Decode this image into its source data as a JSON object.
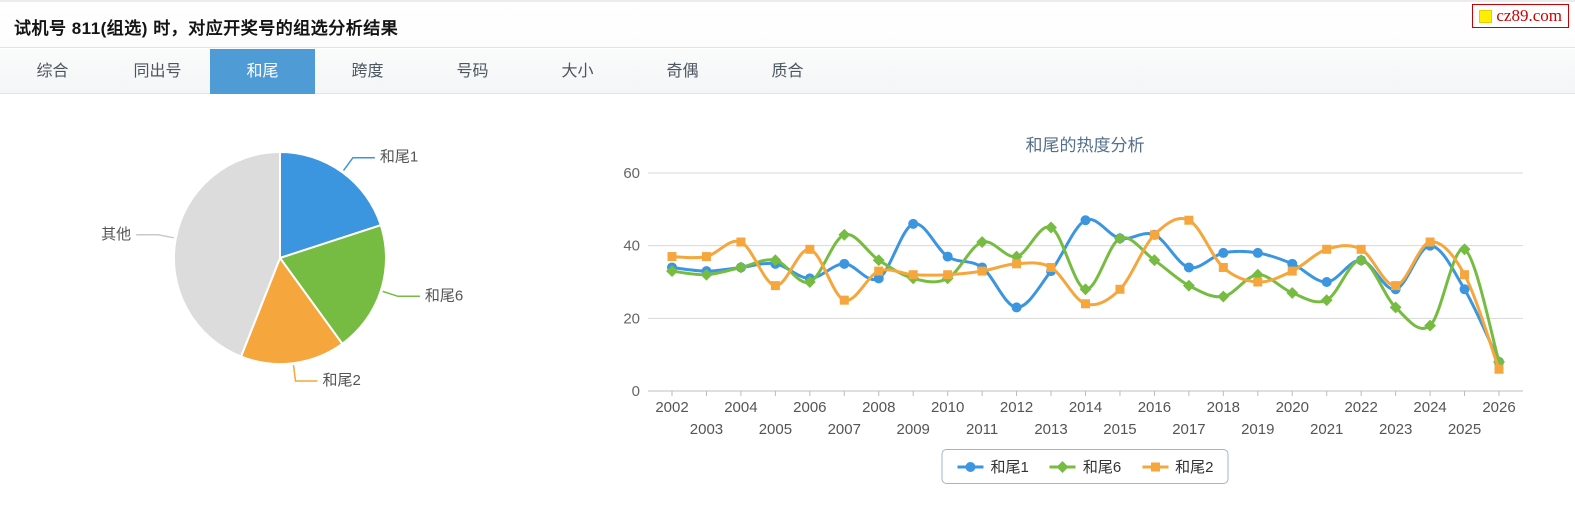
{
  "header": {
    "title": "试机号 811(组选) 时，对应开奖号的组选分析结果",
    "logo_text": "cz89.com"
  },
  "tabs": {
    "active": "和尾",
    "items": [
      {
        "key": "zonghe",
        "label": "综合"
      },
      {
        "key": "tongchuhao",
        "label": "同出号"
      },
      {
        "key": "hewei",
        "label": "和尾"
      },
      {
        "key": "kuadu",
        "label": "跨度"
      },
      {
        "key": "haoma",
        "label": "号码"
      },
      {
        "key": "daxiao",
        "label": "大小"
      },
      {
        "key": "jiou",
        "label": "奇偶"
      },
      {
        "key": "zhihe",
        "label": "质合"
      }
    ]
  },
  "chart_data": [
    {
      "type": "pie",
      "slices": [
        {
          "label": "和尾1",
          "value": 20,
          "color": "#3b95df"
        },
        {
          "label": "和尾6",
          "value": 20,
          "color": "#77bc42"
        },
        {
          "label": "和尾2",
          "value": 16,
          "color": "#f5a63c"
        },
        {
          "label": "其他",
          "value": 44,
          "color": "#dcdcdc"
        }
      ],
      "start_angle_deg": 0,
      "label_color": "#555555"
    },
    {
      "type": "line",
      "title": "和尾的热度分析",
      "x": [
        2002,
        2003,
        2004,
        2005,
        2006,
        2007,
        2008,
        2009,
        2010,
        2011,
        2012,
        2013,
        2014,
        2015,
        2016,
        2017,
        2018,
        2019,
        2020,
        2021,
        2022,
        2023,
        2024,
        2025,
        2026
      ],
      "ylim": [
        0,
        60
      ],
      "yticks": [
        0,
        20,
        40,
        60
      ],
      "grid": true,
      "legend_position": "bottom",
      "series": [
        {
          "name": "和尾1",
          "marker": "circle",
          "color": "#3b95df",
          "values": [
            34,
            33,
            34,
            35,
            31,
            35,
            31,
            46,
            37,
            34,
            23,
            33,
            47,
            42,
            43,
            34,
            38,
            38,
            35,
            30,
            36,
            28,
            40,
            28,
            8
          ]
        },
        {
          "name": "和尾6",
          "marker": "diamond",
          "color": "#77bc42",
          "values": [
            33,
            32,
            34,
            36,
            30,
            43,
            36,
            31,
            31,
            41,
            37,
            45,
            28,
            42,
            36,
            29,
            26,
            32,
            27,
            25,
            36,
            23,
            18,
            39,
            8
          ]
        },
        {
          "name": "和尾2",
          "marker": "square",
          "color": "#f5a63c",
          "values": [
            37,
            37,
            41,
            29,
            39,
            25,
            33,
            32,
            32,
            33,
            35,
            34,
            24,
            28,
            43,
            47,
            34,
            30,
            33,
            39,
            39,
            29,
            41,
            32,
            6
          ]
        }
      ]
    }
  ]
}
